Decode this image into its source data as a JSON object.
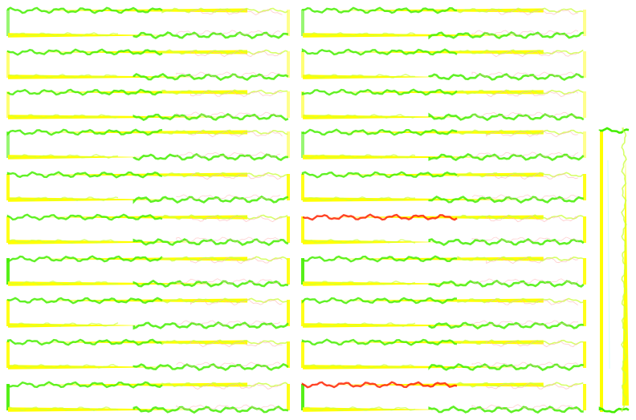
{
  "colors": {
    "background": "#ffffff",
    "yellow": "#ffff00",
    "green": "#44ee00",
    "lime": "#ccff44",
    "red": "#ff2200",
    "pink": "#ffb3b3",
    "cyan": "#bbffee"
  }
}
